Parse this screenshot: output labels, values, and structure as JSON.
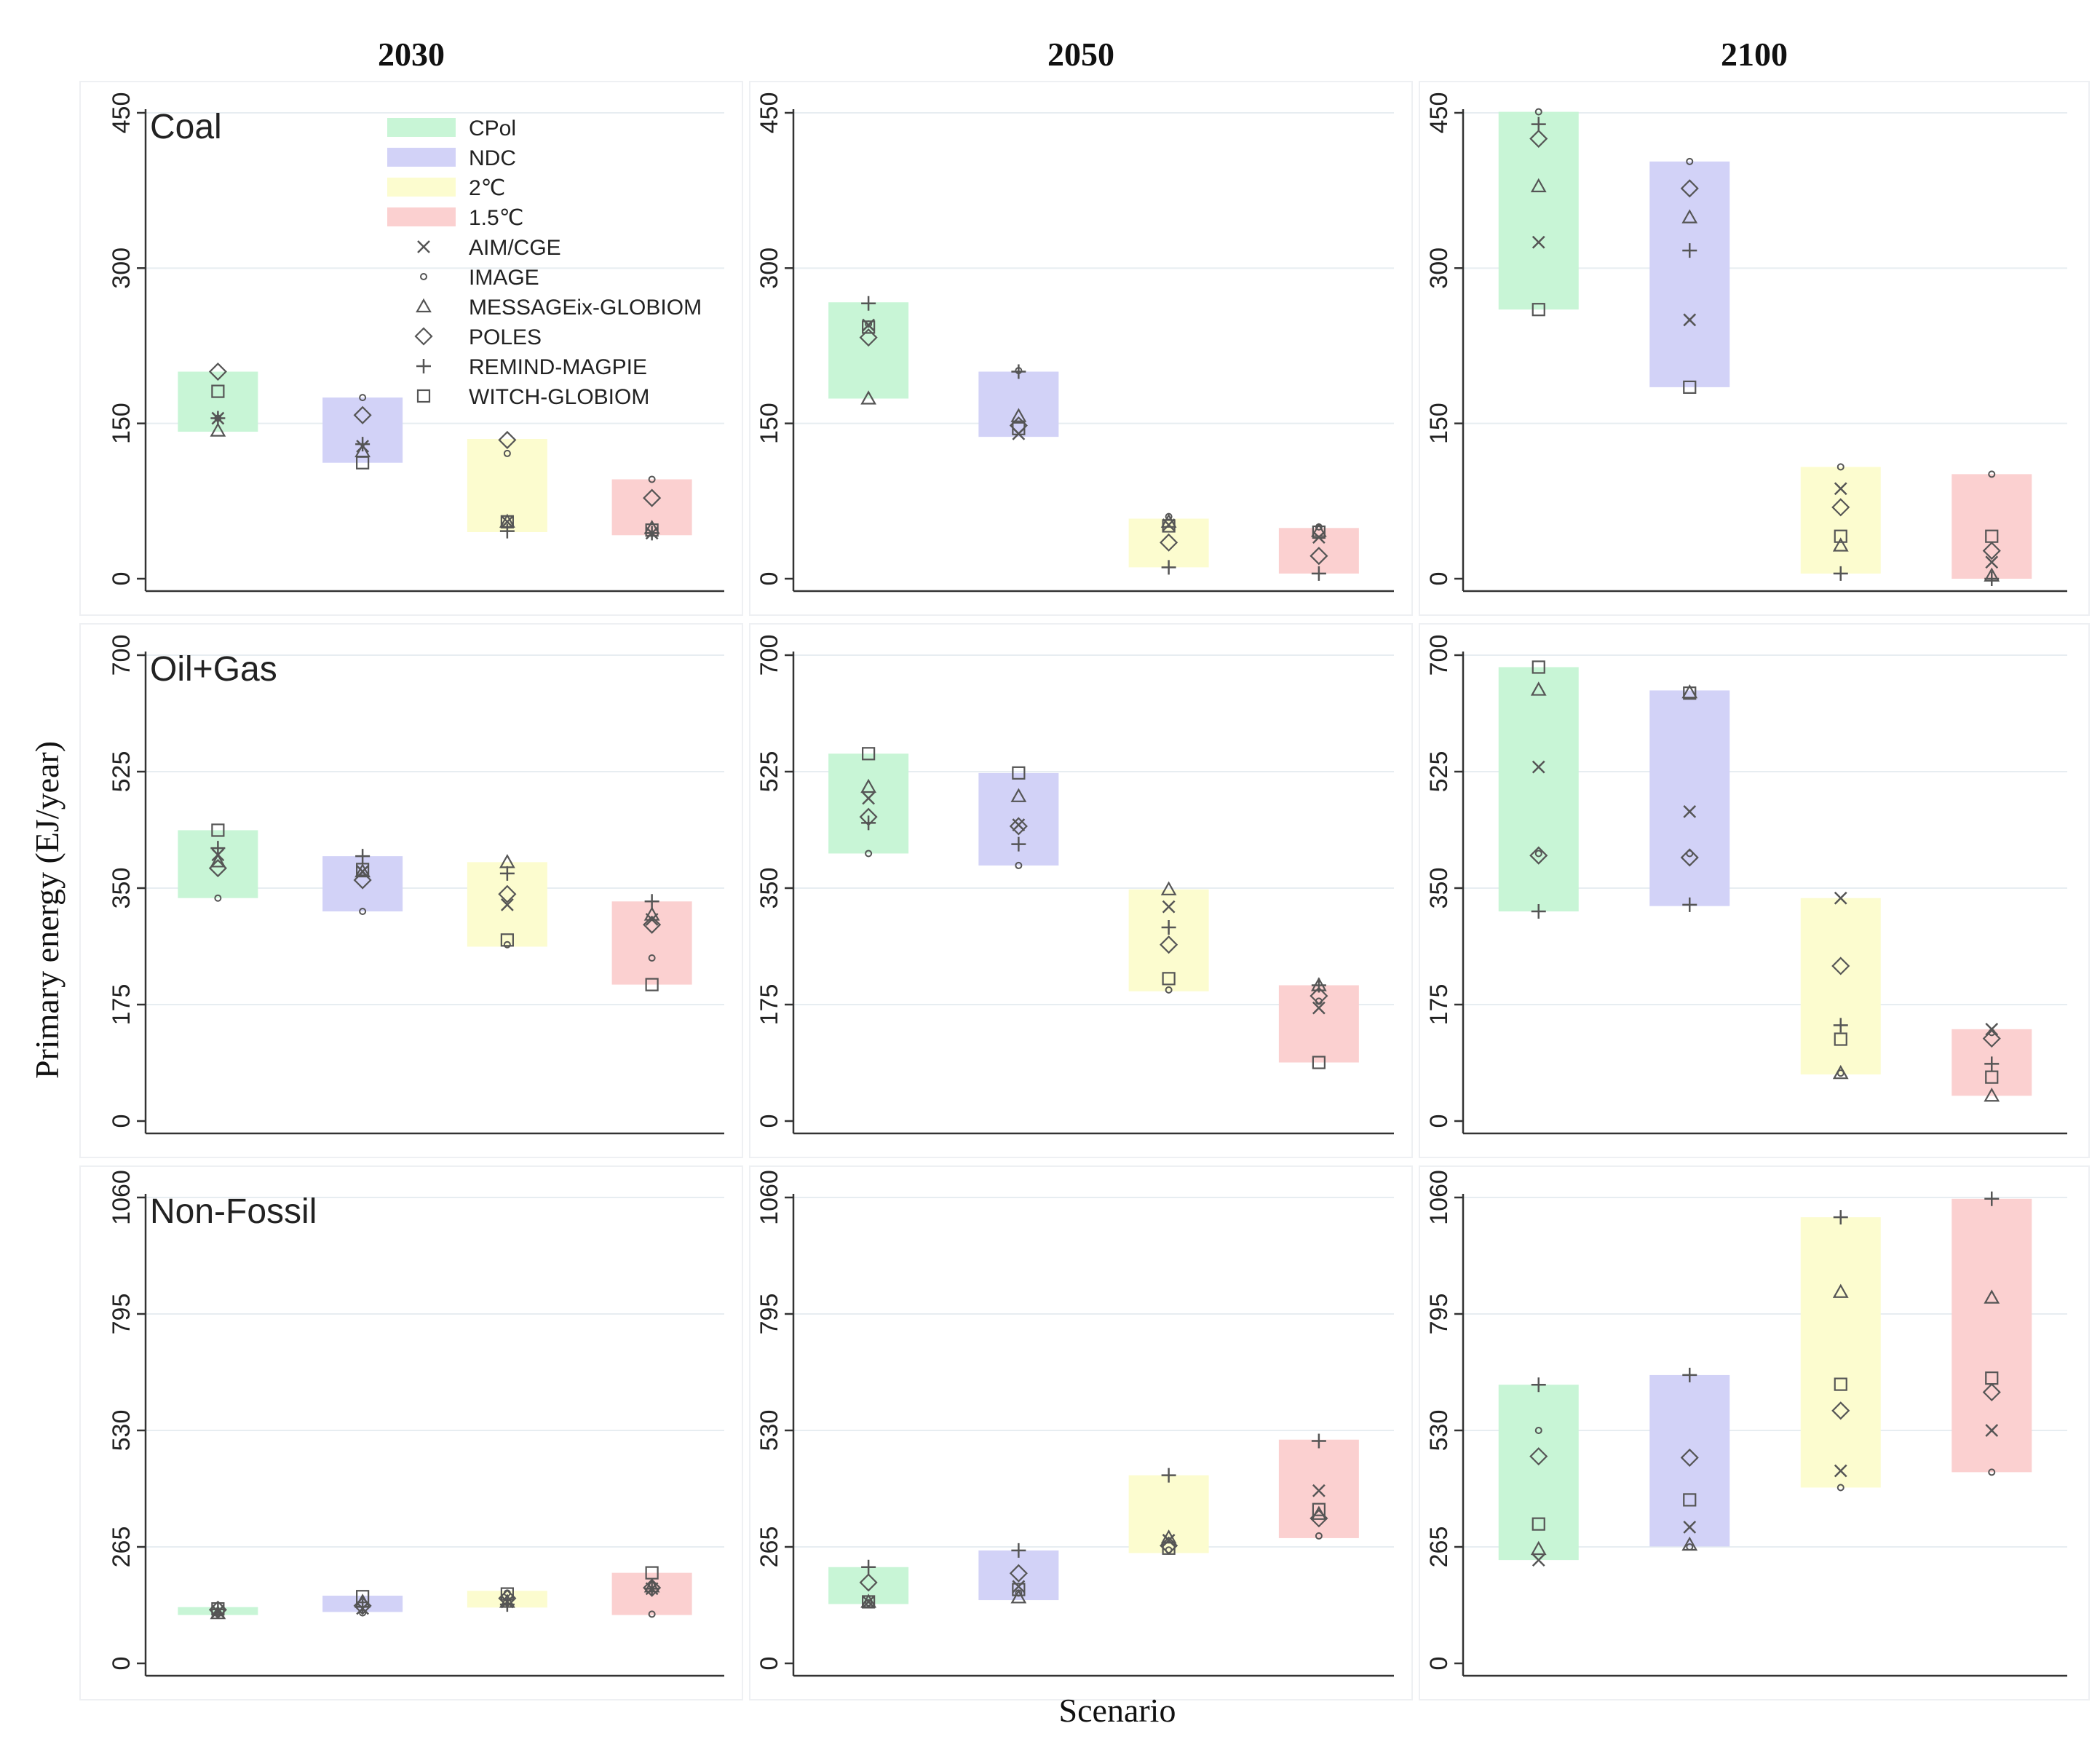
{
  "chart_data": {
    "type": "scatter",
    "title": "",
    "xlabel": "Scenario",
    "ylabel": "Primary energy   (EJ/year)",
    "column_titles": [
      "2030",
      "2050",
      "2100"
    ],
    "row_titles": [
      "Coal",
      "Oil+Gas",
      "Non-Fossil"
    ],
    "scenarios": [
      {
        "name": "CPol",
        "color": "#c8f5d6"
      },
      {
        "name": "NDC",
        "color": "#d2d2f7"
      },
      {
        "name": "2℃",
        "color": "#fcfccf"
      },
      {
        "name": "1.5℃",
        "color": "#fbd0d0"
      }
    ],
    "models": [
      {
        "name": "AIM/CGE",
        "marker": "x"
      },
      {
        "name": "IMAGE",
        "marker": "dot"
      },
      {
        "name": "MESSAGEix-GLOBIOM",
        "marker": "triangle"
      },
      {
        "name": "POLES",
        "marker": "diamond"
      },
      {
        "name": "REMIND-MAGPIE",
        "marker": "plus"
      },
      {
        "name": "WITCH-GLOBIOM",
        "marker": "square"
      }
    ],
    "rows": [
      {
        "name": "Coal",
        "y_ticks": [
          0,
          150,
          300,
          450
        ],
        "ylim": [
          0,
          450
        ],
        "panels": [
          {
            "year": "2030",
            "scenarios": [
              {
                "range": [
                  142,
                  200
                ],
                "values": {
                  "AIM/CGE": 155,
                  "IMAGE": 155,
                  "MESSAGEix-GLOBIOM": 143,
                  "POLES": 200,
                  "REMIND-MAGPIE": 155,
                  "WITCH-GLOBIOM": 181
                }
              },
              {
                "range": [
                  112,
                  175
                ],
                "values": {
                  "AIM/CGE": 128,
                  "IMAGE": 175,
                  "MESSAGEix-GLOBIOM": 123,
                  "POLES": 158,
                  "REMIND-MAGPIE": 130,
                  "WITCH-GLOBIOM": 112
                }
              },
              {
                "range": [
                  45,
                  135
                ],
                "values": {
                  "AIM/CGE": 55,
                  "IMAGE": 121,
                  "MESSAGEix-GLOBIOM": 55,
                  "POLES": 134,
                  "REMIND-MAGPIE": 46,
                  "WITCH-GLOBIOM": 55
                }
              },
              {
                "range": [
                  42,
                  96
                ],
                "values": {
                  "AIM/CGE": 44,
                  "IMAGE": 96,
                  "MESSAGEix-GLOBIOM": 49,
                  "POLES": 78,
                  "REMIND-MAGPIE": 44,
                  "WITCH-GLOBIOM": 47
                }
              }
            ]
          },
          {
            "year": "2050",
            "scenarios": [
              {
                "range": [
                  174,
                  267
                ],
                "values": {
                  "AIM/CGE": 245,
                  "IMAGE": 246,
                  "MESSAGEix-GLOBIOM": 174,
                  "POLES": 233,
                  "REMIND-MAGPIE": 266,
                  "WITCH-GLOBIOM": 243
                }
              },
              {
                "range": [
                  137,
                  200
                ],
                "values": {
                  "AIM/CGE": 140,
                  "IMAGE": 201,
                  "MESSAGEix-GLOBIOM": 157,
                  "POLES": 148,
                  "REMIND-MAGPIE": 200,
                  "WITCH-GLOBIOM": 145
                }
              },
              {
                "range": [
                  11,
                  58
                ],
                "values": {
                  "AIM/CGE": 52,
                  "IMAGE": 60,
                  "MESSAGEix-GLOBIOM": 55,
                  "POLES": 35,
                  "REMIND-MAGPIE": 11,
                  "WITCH-GLOBIOM": 51
                }
              },
              {
                "range": [
                  5,
                  49
                ],
                "values": {
                  "AIM/CGE": 40,
                  "IMAGE": 50,
                  "MESSAGEix-GLOBIOM": 46,
                  "POLES": 22,
                  "REMIND-MAGPIE": 5,
                  "WITCH-GLOBIOM": 45
                }
              }
            ]
          },
          {
            "year": "2100",
            "scenarios": [
              {
                "range": [
                  260,
                  451
                ],
                "values": {
                  "AIM/CGE": 325,
                  "IMAGE": 451,
                  "MESSAGEix-GLOBIOM": 379,
                  "POLES": 425,
                  "REMIND-MAGPIE": 439,
                  "WITCH-GLOBIOM": 260
                }
              },
              {
                "range": [
                  185,
                  403
                ],
                "values": {
                  "AIM/CGE": 250,
                  "IMAGE": 403,
                  "MESSAGEix-GLOBIOM": 349,
                  "POLES": 377,
                  "REMIND-MAGPIE": 317,
                  "WITCH-GLOBIOM": 185
                }
              },
              {
                "range": [
                  5,
                  108
                ],
                "values": {
                  "AIM/CGE": 87,
                  "IMAGE": 108,
                  "MESSAGEix-GLOBIOM": 32,
                  "POLES": 69,
                  "REMIND-MAGPIE": 5,
                  "WITCH-GLOBIOM": 41
                }
              },
              {
                "range": [
                  0,
                  101
                ],
                "values": {
                  "AIM/CGE": 16,
                  "IMAGE": 101,
                  "MESSAGEix-GLOBIOM": 3,
                  "POLES": 27,
                  "REMIND-MAGPIE": 0,
                  "WITCH-GLOBIOM": 41
                }
              }
            ]
          }
        ]
      },
      {
        "name": "Oil+Gas",
        "y_ticks": [
          0,
          175,
          350,
          525,
          700
        ],
        "ylim": [
          0,
          700
        ],
        "panels": [
          {
            "year": "2030",
            "scenarios": [
              {
                "range": [
                  335,
                  437
                ],
                "values": {
                  "AIM/CGE": 400,
                  "IMAGE": 335,
                  "MESSAGEix-GLOBIOM": 390,
                  "POLES": 380,
                  "REMIND-MAGPIE": 410,
                  "WITCH-GLOBIOM": 437
                }
              },
              {
                "range": [
                  315,
                  398
                ],
                "values": {
                  "AIM/CGE": 375,
                  "IMAGE": 315,
                  "MESSAGEix-GLOBIOM": 375,
                  "POLES": 362,
                  "REMIND-MAGPIE": 398,
                  "WITCH-GLOBIOM": 378
                }
              },
              {
                "range": [
                  262,
                  389
                ],
                "values": {
                  "AIM/CGE": 325,
                  "IMAGE": 265,
                  "MESSAGEix-GLOBIOM": 389,
                  "POLES": 341,
                  "REMIND-MAGPIE": 372,
                  "WITCH-GLOBIOM": 272
                }
              },
              {
                "range": [
                  205,
                  330
                ],
                "values": {
                  "AIM/CGE": 303,
                  "IMAGE": 245,
                  "MESSAGEix-GLOBIOM": 310,
                  "POLES": 295,
                  "REMIND-MAGPIE": 330,
                  "WITCH-GLOBIOM": 205
                }
              }
            ]
          },
          {
            "year": "2050",
            "scenarios": [
              {
                "range": [
                  402,
                  552
                ],
                "values": {
                  "AIM/CGE": 485,
                  "IMAGE": 402,
                  "MESSAGEix-GLOBIOM": 502,
                  "POLES": 457,
                  "REMIND-MAGPIE": 448,
                  "WITCH-GLOBIOM": 552
                }
              },
              {
                "range": [
                  384,
                  523
                ],
                "values": {
                  "AIM/CGE": 445,
                  "IMAGE": 384,
                  "MESSAGEix-GLOBIOM": 488,
                  "POLES": 443,
                  "REMIND-MAGPIE": 416,
                  "WITCH-GLOBIOM": 523
                }
              },
              {
                "range": [
                  195,
                  348
                ],
                "values": {
                  "AIM/CGE": 322,
                  "IMAGE": 197,
                  "MESSAGEix-GLOBIOM": 348,
                  "POLES": 265,
                  "REMIND-MAGPIE": 291,
                  "WITCH-GLOBIOM": 214
                }
              },
              {
                "range": [
                  88,
                  204
                ],
                "values": {
                  "AIM/CGE": 170,
                  "IMAGE": 180,
                  "MESSAGEix-GLOBIOM": 204,
                  "POLES": 188,
                  "REMIND-MAGPIE": 204,
                  "WITCH-GLOBIOM": 88
                }
              }
            ]
          },
          {
            "year": "2100",
            "scenarios": [
              {
                "range": [
                  315,
                  682
                ],
                "values": {
                  "AIM/CGE": 532,
                  "IMAGE": 402,
                  "MESSAGEix-GLOBIOM": 648,
                  "POLES": 399,
                  "REMIND-MAGPIE": 315,
                  "WITCH-GLOBIOM": 682
                }
              },
              {
                "range": [
                  323,
                  647
                ],
                "values": {
                  "AIM/CGE": 465,
                  "IMAGE": 402,
                  "MESSAGEix-GLOBIOM": 644,
                  "POLES": 396,
                  "REMIND-MAGPIE": 325,
                  "WITCH-GLOBIOM": 643
                }
              },
              {
                "range": [
                  70,
                  335
                ],
                "values": {
                  "AIM/CGE": 335,
                  "IMAGE": 72,
                  "MESSAGEix-GLOBIOM": 72,
                  "POLES": 233,
                  "REMIND-MAGPIE": 144,
                  "WITCH-GLOBIOM": 123
                }
              },
              {
                "range": [
                  38,
                  138
                ],
                "values": {
                  "AIM/CGE": 138,
                  "IMAGE": 133,
                  "MESSAGEix-GLOBIOM": 38,
                  "POLES": 124,
                  "REMIND-MAGPIE": 86,
                  "WITCH-GLOBIOM": 66
                }
              }
            ]
          }
        ]
      },
      {
        "name": "Non-Fossil",
        "y_ticks": [
          0,
          265,
          530,
          795,
          1060
        ],
        "ylim": [
          0,
          1060
        ],
        "panels": [
          {
            "year": "2030",
            "scenarios": [
              {
                "range": [
                  110,
                  128
                ],
                "values": {
                  "AIM/CGE": 118,
                  "IMAGE": 113,
                  "MESSAGEix-GLOBIOM": 114,
                  "POLES": 122,
                  "REMIND-MAGPIE": 123,
                  "WITCH-GLOBIOM": 124
                }
              },
              {
                "range": [
                  117,
                  154
                ],
                "values": {
                  "AIM/CGE": 125,
                  "IMAGE": 115,
                  "MESSAGEix-GLOBIOM": 140,
                  "POLES": 131,
                  "REMIND-MAGPIE": 129,
                  "WITCH-GLOBIOM": 152
                }
              },
              {
                "range": [
                  127,
                  165
                ],
                "values": {
                  "AIM/CGE": 140,
                  "IMAGE": 160,
                  "MESSAGEix-GLOBIOM": 140,
                  "POLES": 148,
                  "REMIND-MAGPIE": 134,
                  "WITCH-GLOBIOM": 158
                }
              },
              {
                "range": [
                  110,
                  206
                ],
                "values": {
                  "AIM/CGE": 170,
                  "IMAGE": 112,
                  "MESSAGEix-GLOBIOM": 175,
                  "POLES": 172,
                  "REMIND-MAGPIE": 170,
                  "WITCH-GLOBIOM": 206
                }
              }
            ]
          },
          {
            "year": "2050",
            "scenarios": [
              {
                "range": [
                  135,
                  219
                ],
                "values": {
                  "AIM/CGE": 140,
                  "IMAGE": 138,
                  "MESSAGEix-GLOBIOM": 140,
                  "POLES": 184,
                  "REMIND-MAGPIE": 219,
                  "WITCH-GLOBIOM": 140
                }
              },
              {
                "range": [
                  144,
                  257
                ],
                "values": {
                  "AIM/CGE": 175,
                  "IMAGE": 160,
                  "MESSAGEix-GLOBIOM": 150,
                  "POLES": 205,
                  "REMIND-MAGPIE": 257,
                  "WITCH-GLOBIOM": 168
                }
              },
              {
                "range": [
                  251,
                  428
                ],
                "values": {
                  "AIM/CGE": 280,
                  "IMAGE": 258,
                  "MESSAGEix-GLOBIOM": 286,
                  "POLES": 268,
                  "REMIND-MAGPIE": 428,
                  "WITCH-GLOBIOM": 262
                }
              },
              {
                "range": [
                  285,
                  509
                ],
                "values": {
                  "AIM/CGE": 393,
                  "IMAGE": 290,
                  "MESSAGEix-GLOBIOM": 340,
                  "POLES": 330,
                  "REMIND-MAGPIE": 506,
                  "WITCH-GLOBIOM": 350
                }
              }
            ]
          },
          {
            "year": "2100",
            "scenarios": [
              {
                "range": [
                  235,
                  634
                ],
                "values": {
                  "AIM/CGE": 235,
                  "IMAGE": 530,
                  "MESSAGEix-GLOBIOM": 260,
                  "POLES": 471,
                  "REMIND-MAGPIE": 634,
                  "WITCH-GLOBIOM": 317
                }
              },
              {
                "range": [
                  266,
                  656
                ],
                "values": {
                  "AIM/CGE": 310,
                  "IMAGE": 265,
                  "MESSAGEix-GLOBIOM": 270,
                  "POLES": 468,
                  "REMIND-MAGPIE": 656,
                  "WITCH-GLOBIOM": 372
                }
              },
              {
                "range": [
                  400,
                  1015
                ],
                "values": {
                  "AIM/CGE": 438,
                  "IMAGE": 400,
                  "MESSAGEix-GLOBIOM": 845,
                  "POLES": 575,
                  "REMIND-MAGPIE": 1015,
                  "WITCH-GLOBIOM": 635
                }
              },
              {
                "range": [
                  435,
                  1057
                ],
                "values": {
                  "AIM/CGE": 530,
                  "IMAGE": 435,
                  "MESSAGEix-GLOBIOM": 832,
                  "POLES": 617,
                  "REMIND-MAGPIE": 1057,
                  "WITCH-GLOBIOM": 649
                }
              }
            ]
          }
        ]
      }
    ]
  }
}
